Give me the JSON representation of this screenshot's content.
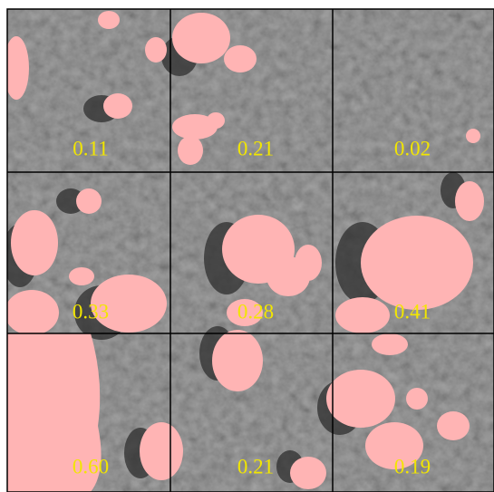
{
  "grid": {
    "rows": [
      [
        "0.11",
        "0.21",
        "0.02"
      ],
      [
        "0.33",
        "0.28",
        "0.41"
      ],
      [
        "0.60",
        "0.21",
        "0.19"
      ]
    ]
  }
}
